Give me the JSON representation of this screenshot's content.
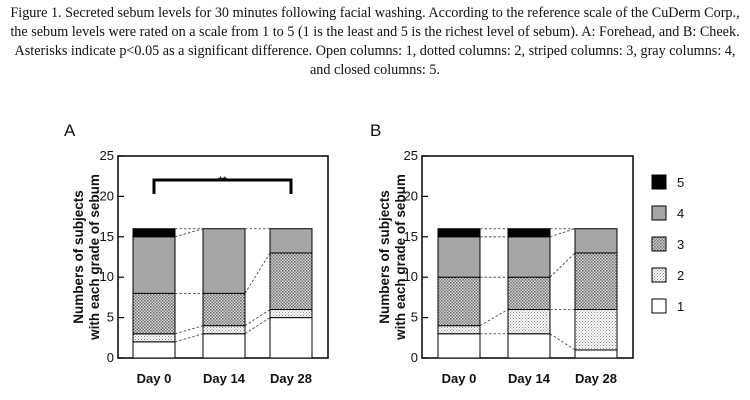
{
  "figure": {
    "caption": "Figure 1. Secreted sebum levels for 30 minutes following facial washing. According to the reference scale of the CuDerm Corp., the sebum levels were rated on a scale from 1 to 5 (1 is the least and 5 is the richest level of sebum). A: Forehead, and B: Cheek. Asterisks indicate p<0.05 as a significant difference. Open columns: 1, dotted columns: 2, striped columns: 3, gray columns: 4, and closed columns: 5."
  },
  "legend": {
    "entries": [
      {
        "label": "5",
        "grade": 5
      },
      {
        "label": "4",
        "grade": 4
      },
      {
        "label": "3",
        "grade": 3
      },
      {
        "label": "2",
        "grade": 2
      },
      {
        "label": "1",
        "grade": 1
      }
    ]
  },
  "colors": {
    "grade1": "#ffffff",
    "grade2_dots": "#888888",
    "grade3_pattern": "#666666",
    "grade4": "#a6a6a6",
    "grade5": "#000000"
  },
  "chart_data": [
    {
      "type": "bar",
      "stacked": true,
      "panel": "A",
      "categories": [
        "Day 0",
        "Day 14",
        "Day 28"
      ],
      "ylabel": "Numbers of subjects with each grade of sebum",
      "ylim": [
        0,
        25
      ],
      "yticks": [
        "0",
        "5",
        "10",
        "15",
        "20",
        "25"
      ],
      "series": [
        {
          "name": "1",
          "values": [
            2,
            3,
            5
          ]
        },
        {
          "name": "2",
          "values": [
            1,
            1,
            1
          ]
        },
        {
          "name": "3",
          "values": [
            5,
            4,
            7
          ]
        },
        {
          "name": "4",
          "values": [
            7,
            8,
            3
          ]
        },
        {
          "name": "5",
          "values": [
            1,
            0,
            0
          ]
        }
      ],
      "significance": {
        "label": "**",
        "from": "Day 0",
        "to": "Day 28"
      }
    },
    {
      "type": "bar",
      "stacked": true,
      "panel": "B",
      "categories": [
        "Day 0",
        "Day 14",
        "Day 28"
      ],
      "ylabel": "Numbers of subjects with each grade of sebum",
      "ylim": [
        0,
        25
      ],
      "yticks": [
        "0",
        "5",
        "10",
        "15",
        "20",
        "25"
      ],
      "series": [
        {
          "name": "1",
          "values": [
            3,
            3,
            1
          ]
        },
        {
          "name": "2",
          "values": [
            1,
            3,
            5
          ]
        },
        {
          "name": "3",
          "values": [
            6,
            4,
            7
          ]
        },
        {
          "name": "4",
          "values": [
            5,
            5,
            3
          ]
        },
        {
          "name": "5",
          "values": [
            1,
            1,
            0
          ]
        }
      ]
    }
  ]
}
